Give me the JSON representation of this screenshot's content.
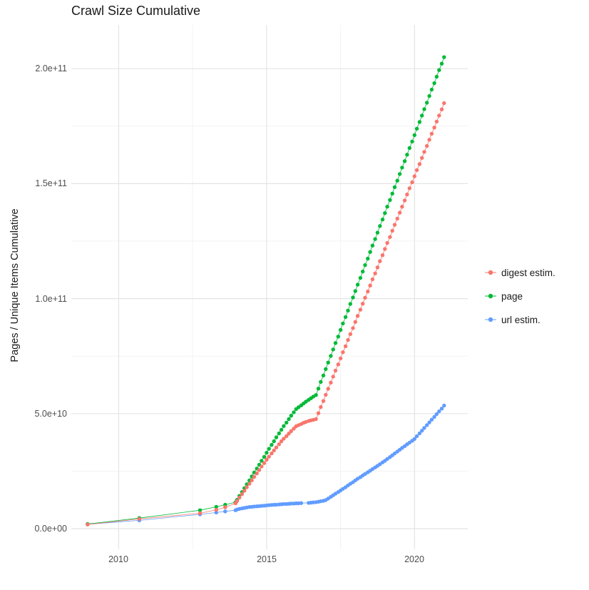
{
  "colors": {
    "digest": "#F8766D",
    "page": "#00BA38",
    "url": "#619CFF",
    "grid_major": "#E4E4E4",
    "grid_minor": "#F3F3F3",
    "axis_text": "#4D4D4D",
    "title_text": "#1A1A1A"
  },
  "chart_data": {
    "type": "scatter",
    "title": "Crawl Size Cumulative",
    "xlabel": "",
    "ylabel": "Pages / Unique Items Cumulative",
    "y_unit": "1e9",
    "grid": "on",
    "xlim": [
      2008.4,
      2021.8
    ],
    "ylim": [
      -9,
      219
    ],
    "x_major_ticks": [
      {
        "value": 2010,
        "label": "2010"
      },
      {
        "value": 2015,
        "label": "2015"
      },
      {
        "value": 2020,
        "label": "2020"
      }
    ],
    "x_minor_ticks": [
      2012.5,
      2017.5
    ],
    "y_major_ticks": [
      {
        "value": 0,
        "label": "0.0e+00"
      },
      {
        "value": 50,
        "label": "5.0e+10"
      },
      {
        "value": 100,
        "label": "1.0e+11"
      },
      {
        "value": 150,
        "label": "1.5e+11"
      },
      {
        "value": 200,
        "label": "2.0e+11"
      }
    ],
    "y_minor_ticks": [
      25,
      75,
      125,
      175
    ],
    "legend": {
      "position": "right",
      "items": [
        {
          "label": "digest estim.",
          "color": "#F8766D"
        },
        {
          "label": "page",
          "color": "#00BA38"
        },
        {
          "label": "url estim.",
          "color": "#619CFF"
        }
      ]
    },
    "series": [
      {
        "name": "digest estim.",
        "color": "#F8766D",
        "points": [
          [
            2008.95,
            1.8
          ],
          [
            2010.7,
            4.2
          ],
          [
            2012.75,
            6.7
          ],
          [
            2013.3,
            8.2
          ],
          [
            2013.6,
            9.3
          ],
          [
            2013.95,
            11.0
          ],
          [
            2014.0,
            12.0
          ],
          [
            2014.08,
            13.5
          ],
          [
            2014.17,
            15.0
          ],
          [
            2014.25,
            16.5
          ],
          [
            2014.33,
            18.0
          ],
          [
            2014.42,
            19.5
          ],
          [
            2014.5,
            21.0
          ],
          [
            2014.58,
            22.5
          ],
          [
            2014.67,
            24.0
          ],
          [
            2014.75,
            25.5
          ],
          [
            2014.83,
            27.0
          ],
          [
            2014.92,
            28.5
          ],
          [
            2015.0,
            30.0
          ],
          [
            2015.08,
            31.3
          ],
          [
            2015.17,
            32.7
          ],
          [
            2015.25,
            34.0
          ],
          [
            2015.33,
            35.3
          ],
          [
            2015.42,
            36.7
          ],
          [
            2015.5,
            38.0
          ],
          [
            2015.58,
            39.1
          ],
          [
            2015.67,
            40.2
          ],
          [
            2015.75,
            41.3
          ],
          [
            2015.83,
            42.4
          ],
          [
            2015.92,
            43.5
          ],
          [
            2016.0,
            44.5
          ],
          [
            2016.08,
            45.0
          ],
          [
            2016.17,
            45.5
          ],
          [
            2016.25,
            46.0
          ],
          [
            2016.33,
            46.4
          ],
          [
            2016.42,
            46.8
          ],
          [
            2016.5,
            47.1
          ],
          [
            2016.58,
            47.3
          ],
          [
            2016.67,
            47.6
          ],
          [
            2016.75,
            50.2
          ],
          [
            2016.83,
            52.9
          ],
          [
            2016.92,
            55.5
          ],
          [
            2017.0,
            58.2
          ],
          [
            2017.08,
            60.8
          ],
          [
            2017.17,
            63.5
          ],
          [
            2017.25,
            66.1
          ],
          [
            2017.33,
            68.7
          ],
          [
            2017.42,
            71.4
          ],
          [
            2017.5,
            74.0
          ],
          [
            2017.58,
            76.7
          ],
          [
            2017.67,
            79.3
          ],
          [
            2017.75,
            82.0
          ],
          [
            2017.83,
            84.6
          ],
          [
            2017.92,
            87.2
          ],
          [
            2018.0,
            89.9
          ],
          [
            2018.08,
            92.5
          ],
          [
            2018.17,
            95.2
          ],
          [
            2018.25,
            97.8
          ],
          [
            2018.33,
            100.4
          ],
          [
            2018.42,
            103.1
          ],
          [
            2018.5,
            105.7
          ],
          [
            2018.58,
            108.4
          ],
          [
            2018.67,
            111.0
          ],
          [
            2018.75,
            113.6
          ],
          [
            2018.83,
            116.3
          ],
          [
            2018.92,
            118.9
          ],
          [
            2019.0,
            121.6
          ],
          [
            2019.08,
            124.2
          ],
          [
            2019.17,
            126.8
          ],
          [
            2019.25,
            129.5
          ],
          [
            2019.33,
            132.1
          ],
          [
            2019.42,
            134.8
          ],
          [
            2019.5,
            137.4
          ],
          [
            2019.58,
            140.0
          ],
          [
            2019.67,
            142.7
          ],
          [
            2019.75,
            145.3
          ],
          [
            2019.83,
            148.0
          ],
          [
            2019.92,
            150.6
          ],
          [
            2020.0,
            153.2
          ],
          [
            2020.08,
            155.9
          ],
          [
            2020.17,
            158.5
          ],
          [
            2020.25,
            161.2
          ],
          [
            2020.33,
            163.8
          ],
          [
            2020.42,
            166.4
          ],
          [
            2020.5,
            169.1
          ],
          [
            2020.58,
            171.7
          ],
          [
            2020.67,
            174.4
          ],
          [
            2020.75,
            177.0
          ],
          [
            2020.83,
            179.6
          ],
          [
            2020.92,
            182.3
          ],
          [
            2021.0,
            185.0
          ]
        ]
      },
      {
        "name": "page",
        "color": "#00BA38",
        "points": [
          [
            2008.95,
            2.0
          ],
          [
            2010.7,
            4.6
          ],
          [
            2012.75,
            8.0
          ],
          [
            2013.3,
            9.5
          ],
          [
            2013.6,
            10.4
          ],
          [
            2013.95,
            11.5
          ],
          [
            2014.0,
            12.5
          ],
          [
            2014.08,
            14.2
          ],
          [
            2014.17,
            15.9
          ],
          [
            2014.25,
            17.6
          ],
          [
            2014.33,
            19.3
          ],
          [
            2014.42,
            21.0
          ],
          [
            2014.5,
            22.7
          ],
          [
            2014.58,
            24.4
          ],
          [
            2014.67,
            26.1
          ],
          [
            2014.75,
            27.8
          ],
          [
            2014.83,
            29.5
          ],
          [
            2014.92,
            31.2
          ],
          [
            2015.0,
            33.0
          ],
          [
            2015.08,
            34.7
          ],
          [
            2015.17,
            36.4
          ],
          [
            2015.25,
            38.0
          ],
          [
            2015.33,
            39.7
          ],
          [
            2015.42,
            41.4
          ],
          [
            2015.5,
            43.0
          ],
          [
            2015.58,
            44.6
          ],
          [
            2015.67,
            46.1
          ],
          [
            2015.75,
            47.6
          ],
          [
            2015.83,
            49.1
          ],
          [
            2015.92,
            50.6
          ],
          [
            2016.0,
            52.0
          ],
          [
            2016.08,
            52.8
          ],
          [
            2016.17,
            53.6
          ],
          [
            2016.25,
            54.4
          ],
          [
            2016.33,
            55.2
          ],
          [
            2016.42,
            56.0
          ],
          [
            2016.5,
            56.7
          ],
          [
            2016.58,
            57.4
          ],
          [
            2016.67,
            58.1
          ],
          [
            2016.75,
            60.9
          ],
          [
            2016.83,
            63.8
          ],
          [
            2016.92,
            66.6
          ],
          [
            2017.0,
            69.4
          ],
          [
            2017.08,
            72.2
          ],
          [
            2017.17,
            75.1
          ],
          [
            2017.25,
            77.9
          ],
          [
            2017.33,
            80.7
          ],
          [
            2017.42,
            83.5
          ],
          [
            2017.5,
            86.4
          ],
          [
            2017.58,
            89.2
          ],
          [
            2017.67,
            92.0
          ],
          [
            2017.75,
            94.8
          ],
          [
            2017.83,
            97.7
          ],
          [
            2017.92,
            100.5
          ],
          [
            2018.0,
            103.3
          ],
          [
            2018.08,
            106.1
          ],
          [
            2018.17,
            109.0
          ],
          [
            2018.25,
            111.8
          ],
          [
            2018.33,
            114.6
          ],
          [
            2018.42,
            117.4
          ],
          [
            2018.5,
            120.3
          ],
          [
            2018.58,
            123.1
          ],
          [
            2018.67,
            125.9
          ],
          [
            2018.75,
            128.7
          ],
          [
            2018.83,
            131.6
          ],
          [
            2018.92,
            134.4
          ],
          [
            2019.0,
            137.2
          ],
          [
            2019.08,
            140.0
          ],
          [
            2019.17,
            142.9
          ],
          [
            2019.25,
            145.7
          ],
          [
            2019.33,
            148.5
          ],
          [
            2019.42,
            151.3
          ],
          [
            2019.5,
            154.2
          ],
          [
            2019.58,
            157.0
          ],
          [
            2019.67,
            159.8
          ],
          [
            2019.75,
            162.6
          ],
          [
            2019.83,
            165.5
          ],
          [
            2019.92,
            168.3
          ],
          [
            2020.0,
            171.1
          ],
          [
            2020.08,
            173.9
          ],
          [
            2020.17,
            176.8
          ],
          [
            2020.25,
            179.6
          ],
          [
            2020.33,
            182.4
          ],
          [
            2020.42,
            185.2
          ],
          [
            2020.5,
            188.1
          ],
          [
            2020.58,
            190.9
          ],
          [
            2020.67,
            193.7
          ],
          [
            2020.75,
            196.5
          ],
          [
            2020.83,
            199.4
          ],
          [
            2020.92,
            202.2
          ],
          [
            2021.0,
            205.0
          ]
        ]
      },
      {
        "name": "url estim.",
        "color": "#619CFF",
        "points": [
          [
            2008.95,
            1.9
          ],
          [
            2010.7,
            3.6
          ],
          [
            2012.75,
            6.2
          ],
          [
            2013.3,
            7.0
          ],
          [
            2013.6,
            7.5
          ],
          [
            2013.95,
            8.0
          ],
          [
            2014.0,
            8.3
          ],
          [
            2014.08,
            8.6
          ],
          [
            2014.17,
            8.8
          ],
          [
            2014.25,
            9.0
          ],
          [
            2014.33,
            9.2
          ],
          [
            2014.42,
            9.4
          ],
          [
            2014.5,
            9.5
          ],
          [
            2014.58,
            9.6
          ],
          [
            2014.67,
            9.7
          ],
          [
            2014.75,
            9.8
          ],
          [
            2014.83,
            9.9
          ],
          [
            2014.92,
            10.0
          ],
          [
            2015.0,
            10.1
          ],
          [
            2015.08,
            10.2
          ],
          [
            2015.17,
            10.3
          ],
          [
            2015.25,
            10.4
          ],
          [
            2015.33,
            10.4
          ],
          [
            2015.42,
            10.5
          ],
          [
            2015.5,
            10.6
          ],
          [
            2015.58,
            10.7
          ],
          [
            2015.67,
            10.7
          ],
          [
            2015.75,
            10.8
          ],
          [
            2015.83,
            10.9
          ],
          [
            2015.92,
            10.9
          ],
          [
            2016.0,
            11.0
          ],
          [
            2016.08,
            11.0
          ],
          [
            2016.17,
            11.1
          ],
          [
            2016.42,
            11.2
          ],
          [
            2016.5,
            11.3
          ],
          [
            2016.58,
            11.4
          ],
          [
            2016.67,
            11.5
          ],
          [
            2016.75,
            11.7
          ],
          [
            2016.83,
            11.9
          ],
          [
            2016.92,
            12.1
          ],
          [
            2017.0,
            12.4
          ],
          [
            2017.08,
            13.1
          ],
          [
            2017.17,
            13.8
          ],
          [
            2017.25,
            14.5
          ],
          [
            2017.33,
            15.2
          ],
          [
            2017.42,
            15.9
          ],
          [
            2017.5,
            16.6
          ],
          [
            2017.58,
            17.3
          ],
          [
            2017.67,
            18.0
          ],
          [
            2017.75,
            18.8
          ],
          [
            2017.83,
            19.5
          ],
          [
            2017.92,
            20.2
          ],
          [
            2018.0,
            21.0
          ],
          [
            2018.08,
            21.7
          ],
          [
            2018.17,
            22.4
          ],
          [
            2018.25,
            23.1
          ],
          [
            2018.33,
            23.8
          ],
          [
            2018.42,
            24.5
          ],
          [
            2018.5,
            25.2
          ],
          [
            2018.58,
            25.9
          ],
          [
            2018.67,
            26.6
          ],
          [
            2018.75,
            27.3
          ],
          [
            2018.83,
            28.0
          ],
          [
            2018.92,
            28.8
          ],
          [
            2019.0,
            29.5
          ],
          [
            2019.08,
            30.3
          ],
          [
            2019.17,
            31.1
          ],
          [
            2019.25,
            31.9
          ],
          [
            2019.33,
            32.7
          ],
          [
            2019.42,
            33.5
          ],
          [
            2019.5,
            34.3
          ],
          [
            2019.58,
            35.1
          ],
          [
            2019.67,
            35.9
          ],
          [
            2019.75,
            36.7
          ],
          [
            2019.83,
            37.4
          ],
          [
            2019.92,
            38.2
          ],
          [
            2020.0,
            39.0
          ],
          [
            2020.08,
            40.2
          ],
          [
            2020.17,
            41.4
          ],
          [
            2020.25,
            42.6
          ],
          [
            2020.33,
            43.8
          ],
          [
            2020.42,
            45.0
          ],
          [
            2020.5,
            46.2
          ],
          [
            2020.58,
            47.4
          ],
          [
            2020.67,
            48.6
          ],
          [
            2020.75,
            49.8
          ],
          [
            2020.83,
            51.0
          ],
          [
            2020.92,
            52.2
          ],
          [
            2021.0,
            53.5
          ]
        ]
      }
    ]
  }
}
